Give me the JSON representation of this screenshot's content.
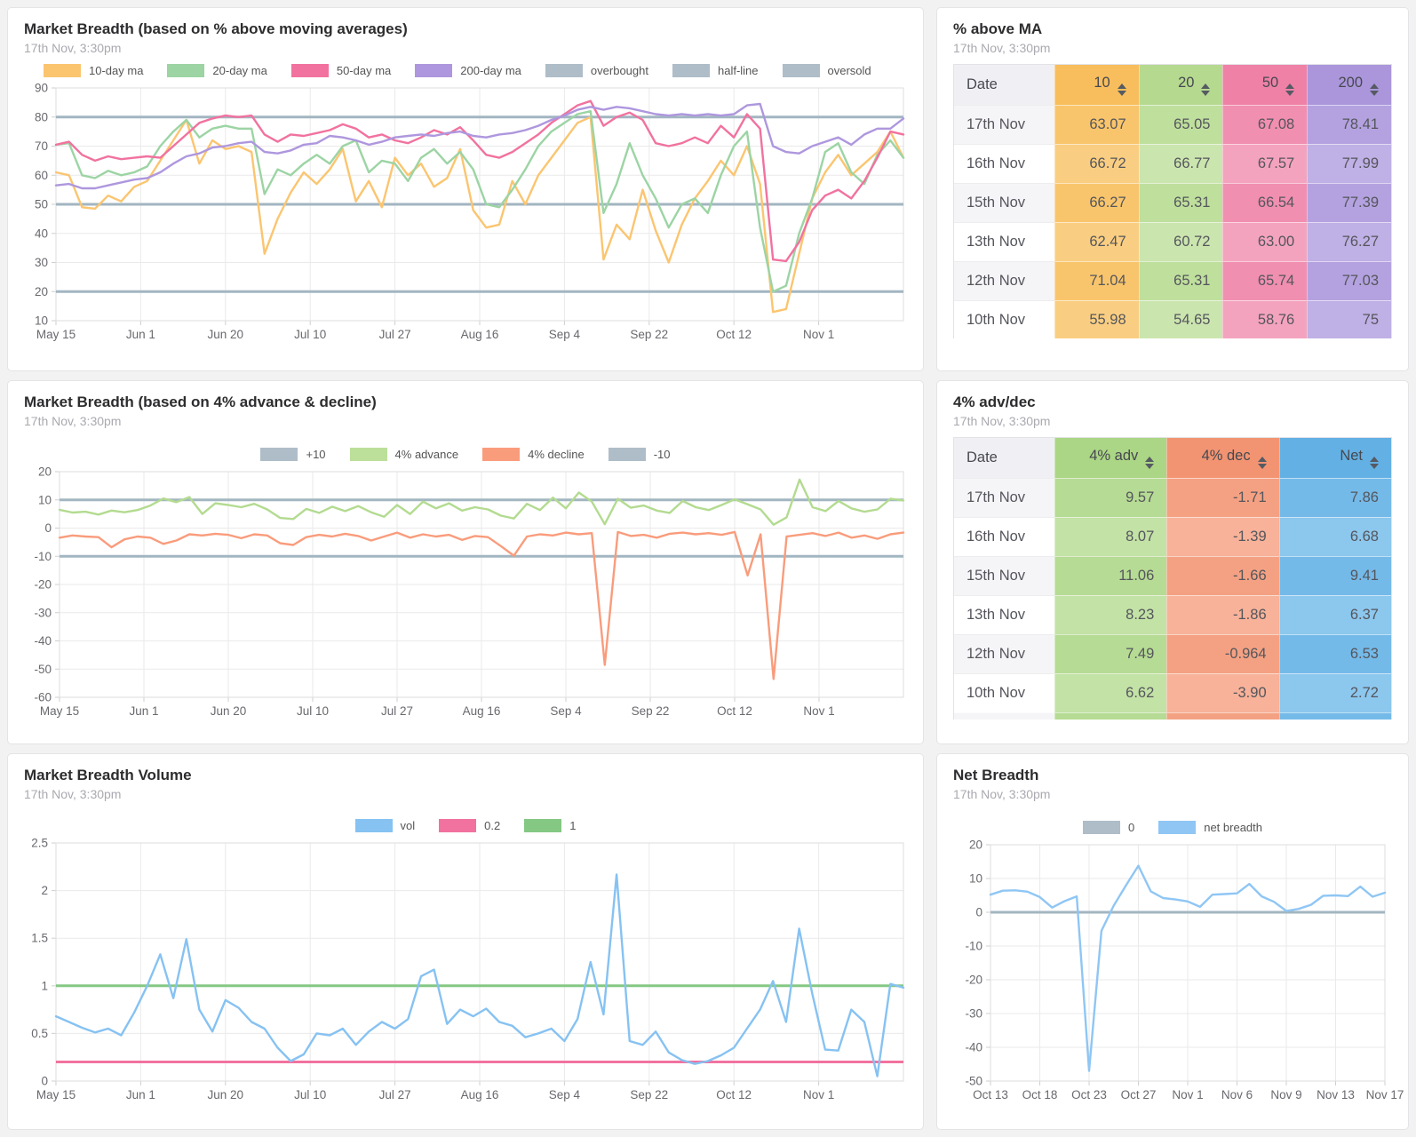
{
  "theme": {
    "background": "#F2F2F3",
    "panel_bg": "#FFFFFF",
    "panel_border": "#E4E4E6",
    "grid_color": "#EAEAEA",
    "plot_border": "#DEDEDE",
    "tick_color": "#CFCFCF",
    "axis_text": "#68696E",
    "gray_ref": "#A2B6C1",
    "orange": "#FBC570",
    "green_ma": "#9CD4A4",
    "pink": "#F1729F",
    "purple": "#AE97DE",
    "adv_green": "#B3DB90",
    "dec_salmon": "#F99C7C",
    "vol_blue": "#86C2F2",
    "ref_green": "#84C884",
    "net_blue": "#8FC6F4"
  },
  "panels": {
    "ma_chart": {
      "title": "Market Breadth (based on % above moving averages)",
      "subtitle": "17th Nov, 3:30pm"
    },
    "ma_table": {
      "title": "% above MA",
      "subtitle": "17th Nov, 3:30pm"
    },
    "adv_chart": {
      "title": "Market Breadth (based on 4% advance & decline)",
      "subtitle": "17th Nov, 3:30pm"
    },
    "adv_table": {
      "title": "4% adv/dec",
      "subtitle": "17th Nov, 3:30pm"
    },
    "vol_chart": {
      "title": "Market Breadth Volume",
      "subtitle": "17th Nov, 3:30pm"
    },
    "net_chart": {
      "title": "Net Breadth",
      "subtitle": "17th Nov, 3:30pm"
    }
  },
  "chart_data": {
    "pct_above_ma": {
      "type": "line",
      "title": "Market Breadth (based on % above moving averages)",
      "x_labels": [
        "May 15",
        "Jun 1",
        "Jun 20",
        "Jul 10",
        "Jul 27",
        "Aug 16",
        "Sep 4",
        "Sep 22",
        "Oct 12",
        "Nov 1"
      ],
      "x_to_edge": false,
      "ylim": [
        10,
        90
      ],
      "yticks": [
        90,
        80,
        70,
        60,
        50,
        40,
        30,
        20,
        10
      ],
      "grid": true,
      "legend": [
        {
          "label": "10-day ma",
          "color": "#FBC570"
        },
        {
          "label": "20-day ma",
          "color": "#9CD4A4"
        },
        {
          "label": "50-day ma",
          "color": "#F1729F"
        },
        {
          "label": "200-day ma",
          "color": "#AE97DE"
        },
        {
          "label": "overbought",
          "color": "#AEBDC8"
        },
        {
          "label": "half-line",
          "color": "#AEBDC8"
        },
        {
          "label": "oversold",
          "color": "#AEBDC8"
        }
      ],
      "ref_lines": [
        {
          "label": "overbought",
          "y": 80,
          "color": "#A2B6C1"
        },
        {
          "label": "half-line",
          "y": 50,
          "color": "#A2B6C1"
        },
        {
          "label": "oversold",
          "y": 20,
          "color": "#A2B6C1"
        }
      ],
      "series": [
        {
          "name": "10-day ma",
          "color": "#FBC570",
          "values": [
            61,
            60,
            49,
            48.5,
            53,
            51,
            56,
            58,
            65,
            72,
            79,
            64,
            72,
            69,
            70,
            68,
            33,
            45,
            54,
            61,
            57,
            62,
            69,
            51,
            58,
            49,
            66,
            60,
            64,
            56,
            59,
            69,
            48,
            42,
            43,
            58,
            50,
            60,
            66,
            72,
            78,
            80,
            31,
            43,
            38,
            55,
            41,
            30,
            43,
            52,
            58,
            65,
            60,
            70,
            57,
            13,
            14,
            33,
            52,
            61,
            67,
            60,
            64,
            68,
            75,
            66
          ]
        },
        {
          "name": "20-day ma",
          "color": "#9CD4A4",
          "values": [
            70.5,
            71,
            60,
            59,
            61.5,
            60,
            61,
            63,
            70,
            75,
            79,
            73,
            76,
            77,
            76,
            76,
            53.5,
            62,
            60,
            64,
            67,
            64,
            70,
            72,
            61,
            65,
            64,
            58,
            66,
            69,
            64,
            68,
            62,
            50,
            49,
            55,
            62,
            70,
            75,
            78,
            81,
            82,
            47,
            57,
            71,
            60,
            52,
            42,
            50,
            52,
            47,
            60,
            70,
            75,
            42,
            20,
            22,
            40,
            52,
            68,
            71,
            61,
            57,
            67,
            72,
            66
          ]
        },
        {
          "name": "50-day ma",
          "color": "#F1729F",
          "values": [
            70.5,
            71.5,
            67,
            65,
            66.5,
            65.5,
            66,
            66.5,
            66,
            70,
            74,
            78,
            79.5,
            80.5,
            80,
            80.5,
            74,
            71.5,
            74,
            73.5,
            74.5,
            75.5,
            77.5,
            76,
            73,
            74,
            72,
            71,
            73,
            75.5,
            74,
            76.5,
            72,
            67,
            66,
            68,
            71,
            74,
            78,
            81,
            84,
            85.5,
            77,
            80,
            81.5,
            79,
            71,
            70,
            71,
            73,
            71,
            77,
            73,
            81,
            76,
            31,
            30.5,
            37,
            48,
            53,
            55,
            52,
            58,
            66,
            75,
            74
          ]
        },
        {
          "name": "200-day ma",
          "color": "#AE97DE",
          "values": [
            56.5,
            57,
            55.5,
            55.5,
            56.5,
            57.5,
            58.5,
            59,
            61,
            64,
            66.5,
            67.5,
            69.5,
            70,
            71,
            71.5,
            68,
            67.5,
            68.5,
            70.5,
            71,
            73.5,
            73,
            72,
            70.5,
            71.5,
            73,
            73.5,
            74,
            73.5,
            74.5,
            75,
            73.5,
            73,
            74,
            74.5,
            75.5,
            77,
            79,
            80.5,
            82.5,
            83.5,
            82.5,
            83.5,
            83,
            82,
            81,
            80.5,
            81,
            80.5,
            81,
            80.5,
            81,
            84,
            84.5,
            70,
            68,
            67.5,
            70,
            71.5,
            73,
            70.5,
            74,
            76,
            76,
            79.5
          ]
        }
      ]
    },
    "adv_dec": {
      "type": "line",
      "title": "Market Breadth (based on 4% advance & decline)",
      "x_labels": [
        "May 15",
        "Jun 1",
        "Jun 20",
        "Jul 10",
        "Jul 27",
        "Aug 16",
        "Sep 4",
        "Sep 22",
        "Oct 12",
        "Nov 1"
      ],
      "x_to_edge": false,
      "ylim": [
        -60,
        20
      ],
      "yticks": [
        20,
        10,
        0,
        -10,
        -20,
        -30,
        -40,
        -50,
        -60
      ],
      "grid": true,
      "legend": [
        {
          "label": "+10",
          "color": "#AEBDC8"
        },
        {
          "label": "4% advance",
          "color": "#BCDF9A"
        },
        {
          "label": "4% decline",
          "color": "#F99C7C"
        },
        {
          "label": "-10",
          "color": "#AEBDC8"
        }
      ],
      "ref_lines": [
        {
          "label": "+10",
          "y": 10,
          "color": "#A2B6C1"
        },
        {
          "label": "-10",
          "y": -10,
          "color": "#A2B6C1"
        }
      ],
      "series": [
        {
          "name": "4% advance",
          "color": "#B3DB90",
          "values": [
            6.5,
            5.5,
            5.8,
            4.8,
            6.2,
            5.6,
            6.4,
            8,
            10.5,
            9.2,
            11,
            5,
            8.8,
            8.2,
            7.4,
            8.6,
            6.6,
            3.6,
            3.2,
            6.8,
            5.4,
            7.6,
            6,
            7.8,
            5.6,
            4,
            8.2,
            5,
            9.4,
            7,
            8.8,
            6.2,
            7.4,
            6.6,
            4.4,
            3.4,
            8.6,
            6.4,
            10.8,
            7,
            12.6,
            9.4,
            1.4,
            10.4,
            7.2,
            8,
            6.2,
            5.4,
            9.6,
            7.4,
            6.4,
            8.2,
            10.2,
            8.4,
            6.6,
            1.2,
            3.8,
            17.2,
            7.4,
            6,
            9.6,
            7,
            5.8,
            6.6,
            10.4,
            9.8
          ]
        },
        {
          "name": "4% decline",
          "color": "#F99C7C",
          "values": [
            -3.4,
            -2.6,
            -3,
            -3.2,
            -6.8,
            -4,
            -3,
            -3.4,
            -5.6,
            -4.4,
            -2.2,
            -2.6,
            -2,
            -2.4,
            -3.6,
            -2.2,
            -2.6,
            -5.4,
            -6,
            -3.2,
            -2.4,
            -3,
            -2,
            -2.8,
            -4.4,
            -3,
            -1.6,
            -3.4,
            -2.2,
            -3,
            -2.4,
            -4.2,
            -2.8,
            -3.2,
            -6.4,
            -9.8,
            -3,
            -2.2,
            -2.6,
            -1.6,
            -2.2,
            -1.8,
            -48.5,
            -1.4,
            -2.8,
            -2.4,
            -3.4,
            -2,
            -1.6,
            -2.2,
            -1.8,
            -2.4,
            -1.4,
            -16.8,
            -2.2,
            -53.5,
            -3,
            -2.4,
            -1.8,
            -2.8,
            -1.6,
            -3.4,
            -2.6,
            -3.8,
            -2.2,
            -1.6
          ]
        }
      ]
    },
    "volume": {
      "type": "line",
      "title": "Market Breadth Volume",
      "x_labels": [
        "May 15",
        "Jun 1",
        "Jun 20",
        "Jul 10",
        "Jul 27",
        "Aug 16",
        "Sep 4",
        "Sep 22",
        "Oct 12",
        "Nov 1"
      ],
      "x_to_edge": false,
      "ylim": [
        0,
        2.5
      ],
      "yticks": [
        2.5,
        2,
        1.5,
        1,
        0.5,
        0
      ],
      "grid": true,
      "legend": [
        {
          "label": "vol",
          "color": "#86C2F2"
        },
        {
          "label": "0.2",
          "color": "#F1729F"
        },
        {
          "label": "1",
          "color": "#84C884"
        }
      ],
      "ref_lines": [
        {
          "label": "0.2",
          "y": 0.2,
          "color": "#F1729F"
        },
        {
          "label": "1",
          "y": 1,
          "color": "#84C884"
        }
      ],
      "series": [
        {
          "name": "vol",
          "color": "#86C2F2",
          "values": [
            0.68,
            0.62,
            0.56,
            0.51,
            0.55,
            0.48,
            0.72,
            1.0,
            1.33,
            0.87,
            1.49,
            0.75,
            0.52,
            0.85,
            0.77,
            0.62,
            0.55,
            0.35,
            0.21,
            0.28,
            0.5,
            0.48,
            0.55,
            0.38,
            0.52,
            0.62,
            0.55,
            0.65,
            1.1,
            1.17,
            0.6,
            0.75,
            0.68,
            0.76,
            0.62,
            0.58,
            0.46,
            0.5,
            0.55,
            0.42,
            0.65,
            1.25,
            0.7,
            2.17,
            0.42,
            0.38,
            0.52,
            0.3,
            0.22,
            0.18,
            0.21,
            0.27,
            0.35,
            0.55,
            0.75,
            1.05,
            0.62,
            1.6,
            0.92,
            0.33,
            0.32,
            0.75,
            0.62,
            0.05,
            1.02,
            0.98
          ]
        }
      ]
    },
    "net_breadth": {
      "type": "line",
      "title": "Net Breadth",
      "x_labels": [
        "Oct 13",
        "Oct 18",
        "Oct 23",
        "Oct 27",
        "Nov 1",
        "Nov 6",
        "Nov 9",
        "Nov 13",
        "Nov 17"
      ],
      "x_to_edge": true,
      "ylim": [
        -50,
        20
      ],
      "yticks": [
        20,
        10,
        0,
        -10,
        -20,
        -30,
        -40,
        -50
      ],
      "grid": true,
      "legend": [
        {
          "label": "0",
          "color": "#AEBDC8"
        },
        {
          "label": "net breadth",
          "color": "#8FC6F4"
        }
      ],
      "ref_lines": [
        {
          "label": "0",
          "y": 0,
          "color": "#A2B6C1"
        }
      ],
      "series": [
        {
          "name": "net breadth",
          "color": "#8FC6F4",
          "values": [
            5.2,
            6.4,
            6.5,
            6.1,
            4.5,
            1.4,
            3.3,
            4.7,
            -47,
            -5.5,
            2.0,
            8.0,
            13.8,
            6.2,
            4.2,
            3.8,
            3.2,
            1.6,
            5.2,
            5.4,
            5.6,
            8.4,
            4.7,
            3.1,
            0.4,
            1.0,
            2.2,
            4.9,
            5.0,
            4.8,
            7.6,
            4.6,
            5.8
          ]
        }
      ]
    },
    "pct_above_ma_table": {
      "type": "table",
      "title": "% above MA",
      "columns": [
        {
          "label": "Date",
          "sortable": false,
          "align": "left",
          "header_bg": "#F0F0F4",
          "odd_bg": "#F5F5F7",
          "even_bg": "#FFFFFF"
        },
        {
          "label": "10",
          "sortable": true,
          "align": "right",
          "header_bg": "#F8BE5D",
          "odd_bg": "#F9C56C",
          "even_bg": "#FACE82"
        },
        {
          "label": "20",
          "sortable": true,
          "align": "right",
          "header_bg": "#B5DA8F",
          "odd_bg": "#BFDF9D",
          "even_bg": "#CBE5AF"
        },
        {
          "label": "50",
          "sortable": true,
          "align": "right",
          "header_bg": "#EF81A6",
          "odd_bg": "#F18FB0",
          "even_bg": "#F4A3BE"
        },
        {
          "label": "200",
          "sortable": true,
          "align": "right",
          "header_bg": "#AB96DC",
          "odd_bg": "#B4A2E0",
          "even_bg": "#BFB0E5"
        }
      ],
      "rows": [
        [
          "17th Nov",
          "63.07",
          "65.05",
          "67.08",
          "78.41"
        ],
        [
          "16th Nov",
          "66.72",
          "66.77",
          "67.57",
          "77.99"
        ],
        [
          "15th Nov",
          "66.27",
          "65.31",
          "66.54",
          "77.39"
        ],
        [
          "13th Nov",
          "62.47",
          "60.72",
          "63.00",
          "76.27"
        ],
        [
          "12th Nov",
          "71.04",
          "65.31",
          "65.74",
          "77.03"
        ],
        [
          "10th Nov",
          "55.98",
          "54.65",
          "58.76",
          "75"
        ]
      ],
      "partial_row": false
    },
    "adv_dec_table": {
      "type": "table",
      "title": "4% adv/dec",
      "columns": [
        {
          "label": "Date",
          "sortable": false,
          "align": "left",
          "header_bg": "#F0F0F4",
          "odd_bg": "#F5F5F7",
          "even_bg": "#FFFFFF"
        },
        {
          "label": "4% adv",
          "sortable": true,
          "align": "right",
          "header_bg": "#ABD685",
          "odd_bg": "#B6DB94",
          "even_bg": "#C3E2A6"
        },
        {
          "label": "4% dec",
          "sortable": true,
          "align": "right",
          "header_bg": "#F29472",
          "odd_bg": "#F4A183",
          "even_bg": "#F7B299"
        },
        {
          "label": "Net",
          "sortable": true,
          "align": "right",
          "header_bg": "#63B0E4",
          "odd_bg": "#74BAE9",
          "even_bg": "#8CC7EE"
        }
      ],
      "rows": [
        [
          "17th Nov",
          "9.57",
          "-1.71",
          "7.86"
        ],
        [
          "16th Nov",
          "8.07",
          "-1.39",
          "6.68"
        ],
        [
          "15th Nov",
          "11.06",
          "-1.66",
          "9.41"
        ],
        [
          "13th Nov",
          "8.23",
          "-1.86",
          "6.37"
        ],
        [
          "12th Nov",
          "7.49",
          "-0.964",
          "6.53"
        ],
        [
          "10th Nov",
          "6.62",
          "-3.90",
          "2.72"
        ]
      ],
      "partial_row": true
    }
  }
}
